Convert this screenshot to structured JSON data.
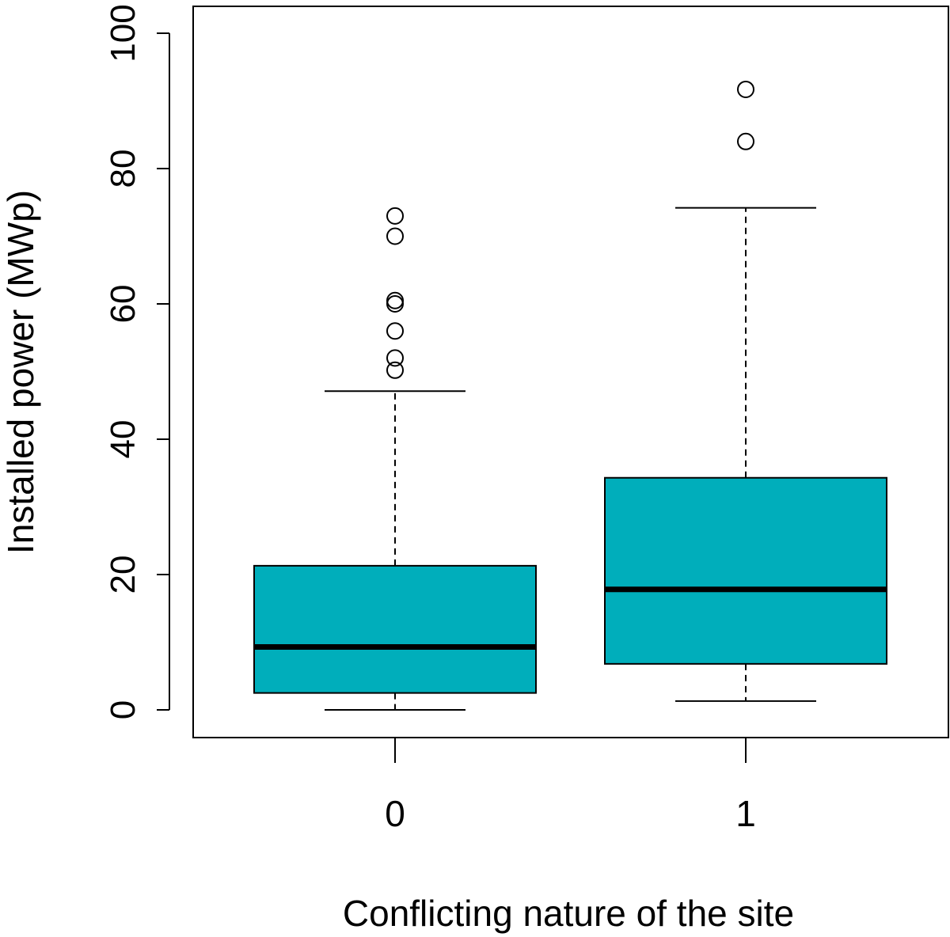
{
  "chart_data": {
    "type": "boxplot",
    "title": "",
    "xlabel": "Conflicting nature of the site",
    "ylabel": "Installed power (MWp)",
    "ylim": [
      0,
      100
    ],
    "y_ticks": [
      "0",
      "20",
      "40",
      "60",
      "80",
      "100"
    ],
    "grid": false,
    "legend": "none",
    "box_color": "#00aebb",
    "categories": [
      "0",
      "1"
    ],
    "boxes": [
      {
        "category": "0",
        "whisker_low": 0,
        "q1": 2.5,
        "median": 9.3,
        "q3": 21.3,
        "whisker_high": 47.1,
        "outliers": [
          50.2,
          52,
          56,
          60,
          60.5,
          70,
          73
        ]
      },
      {
        "category": "1",
        "whisker_low": 1.3,
        "q1": 6.8,
        "median": 17.8,
        "q3": 34.3,
        "whisker_high": 74.2,
        "outliers": [
          84,
          91.7
        ]
      }
    ]
  }
}
